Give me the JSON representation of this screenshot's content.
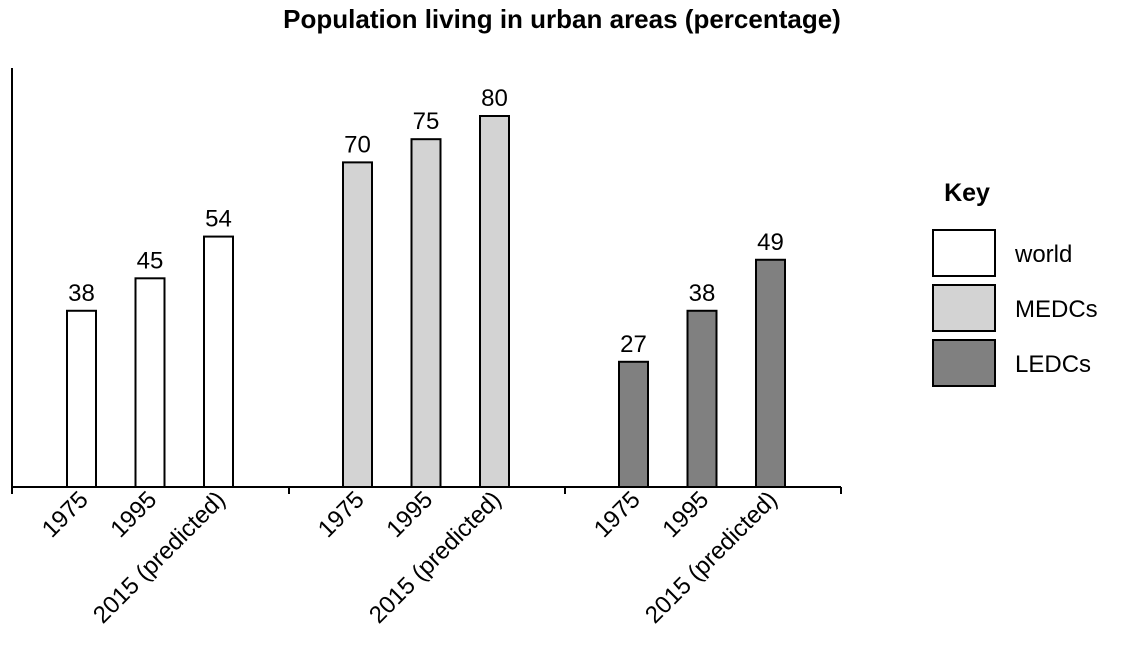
{
  "chart_data": {
    "type": "bar",
    "title": "Population living in urban areas (percentage)",
    "xlabel": "",
    "ylabel": "",
    "ylim": [
      0,
      100
    ],
    "grid": false,
    "legend_position": "right",
    "groups": [
      {
        "series": "world",
        "categories": [
          "1975",
          "1995",
          "2015 (predicted)"
        ],
        "values": [
          38,
          45,
          54
        ]
      },
      {
        "series": "MEDCs",
        "categories": [
          "1975",
          "1995",
          "2015 (predicted)"
        ],
        "values": [
          70,
          75,
          80
        ]
      },
      {
        "series": "LEDCs",
        "categories": [
          "1975",
          "1995",
          "2015 (predicted)"
        ],
        "values": [
          27,
          38,
          49
        ]
      }
    ],
    "legend": {
      "title": "Key",
      "entries": [
        {
          "name": "world",
          "color": "#ffffff"
        },
        {
          "name": "MEDCs",
          "color": "#d3d3d3"
        },
        {
          "name": "LEDCs",
          "color": "#808080"
        }
      ]
    }
  }
}
